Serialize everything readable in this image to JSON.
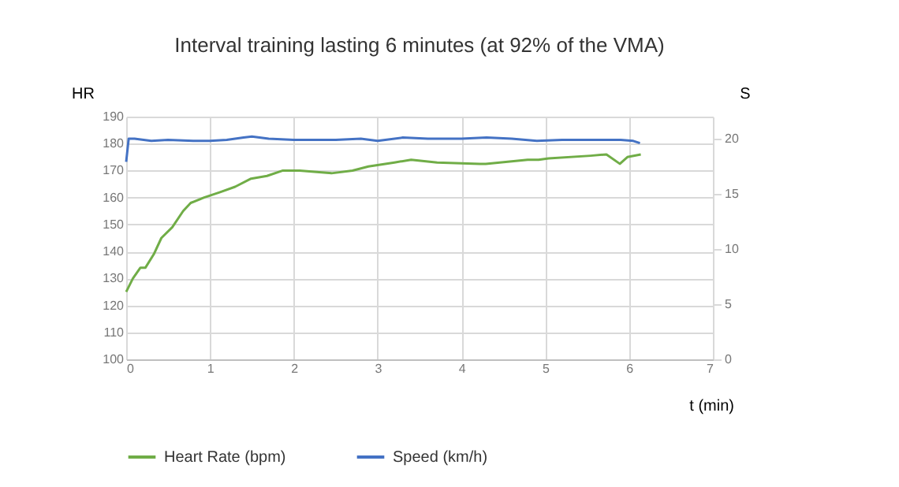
{
  "chart_data": {
    "type": "line",
    "title": "Interval training lasting 6 minutes (at 92% of the VMA)",
    "xlabel": "t (min)",
    "ylabel": "HR",
    "y2label": "S",
    "xlim": [
      0,
      7
    ],
    "xticks": [
      0,
      1,
      2,
      3,
      4,
      5,
      6,
      7
    ],
    "ylim": [
      100,
      190
    ],
    "yticks": [
      100,
      110,
      120,
      130,
      140,
      150,
      160,
      170,
      180,
      190
    ],
    "y2lim": [
      0,
      22
    ],
    "y2ticks": [
      0,
      5,
      10,
      15,
      20
    ],
    "grid": true,
    "legend": "bottom",
    "series": [
      {
        "name": "Heart Rate (bpm)",
        "color": "#70ad47",
        "x": [
          0,
          0.08,
          0.17,
          0.23,
          0.33,
          0.42,
          0.55,
          0.68,
          0.77,
          0.93,
          1.12,
          1.3,
          1.49,
          1.68,
          1.87,
          2.07,
          2.45,
          2.7,
          2.89,
          3.2,
          3.4,
          3.71,
          4.22,
          4.29,
          4.79,
          4.92,
          5.04,
          5.54,
          5.73,
          5.89,
          5.98,
          6.14
        ],
        "values": [
          125,
          130,
          134,
          134,
          139,
          145,
          149,
          155,
          158,
          160,
          162,
          164,
          167,
          168,
          170,
          170,
          169,
          170,
          171.5,
          173,
          174,
          173,
          172.5,
          172.5,
          174,
          174,
          174.5,
          175.5,
          176,
          172.5,
          175,
          176
        ]
      },
      {
        "name": "Speed (km/h)",
        "color": "#4472c4",
        "axis": "y2",
        "x": [
          0,
          0.03,
          0.1,
          0.3,
          0.5,
          0.8,
          1.0,
          1.2,
          1.4,
          1.5,
          1.7,
          2.0,
          2.5,
          2.8,
          3.0,
          3.3,
          3.6,
          4.0,
          4.3,
          4.6,
          4.9,
          5.2,
          5.6,
          5.9,
          6.05,
          6.13
        ],
        "values": [
          17.9,
          20.0,
          20.0,
          19.8,
          19.9,
          19.8,
          19.8,
          19.9,
          20.1,
          20.2,
          20.0,
          19.9,
          19.9,
          20.0,
          19.8,
          20.1,
          20.0,
          20.0,
          20.1,
          20.0,
          19.8,
          19.9,
          19.9,
          19.9,
          19.8,
          19.6
        ]
      }
    ]
  }
}
